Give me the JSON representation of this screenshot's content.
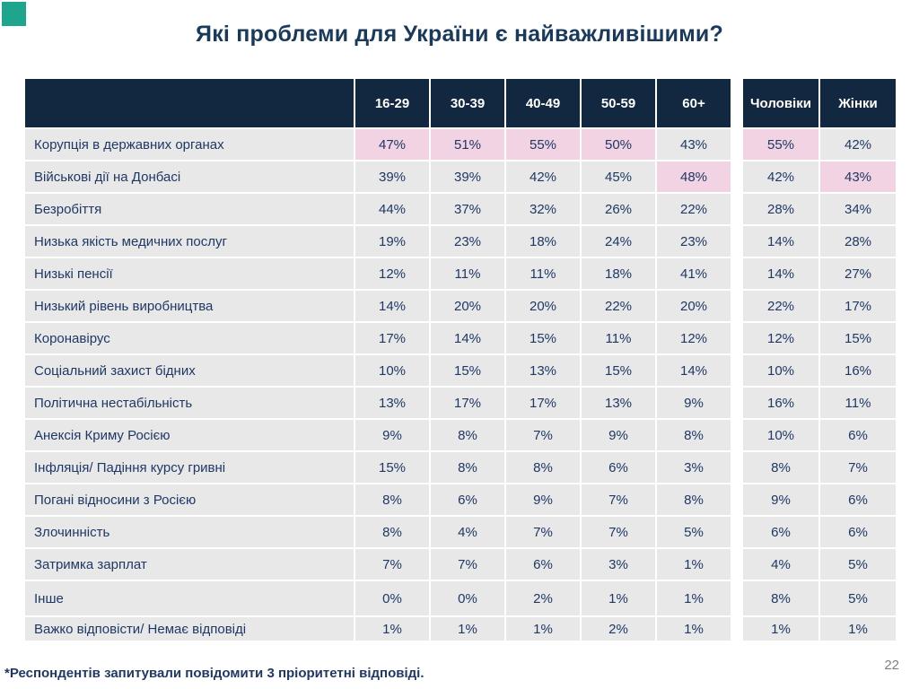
{
  "slide": {
    "title": "Які проблеми для України є найважливішими?",
    "footnote": "*Респондентів запитували повідомити 3 пріоритетні відповіді.",
    "page_number": "22"
  },
  "colors": {
    "accent": "#1FA58D",
    "title_text": "#1A3A5C",
    "header_bg": "#122740",
    "cell_text": "#1F3864",
    "row_bg": "#E8E8E8",
    "highlight_pink": "#F2D3E3"
  },
  "table": {
    "corner_label": "",
    "col_headers_age": [
      "16-29",
      "30-39",
      "40-49",
      "50-59",
      "60+"
    ],
    "col_headers_gender": [
      "Чоловіки",
      "Жінки"
    ],
    "rows": [
      {
        "label": "Корупція в державних органах",
        "age": [
          "47%",
          "51%",
          "55%",
          "50%",
          "43%"
        ],
        "gender": [
          "55%",
          "42%"
        ],
        "age_hl": [
          true,
          true,
          true,
          true,
          false
        ],
        "gender_hl": [
          true,
          false
        ]
      },
      {
        "label": "Військові дії на Донбасі",
        "age": [
          "39%",
          "39%",
          "42%",
          "45%",
          "48%"
        ],
        "gender": [
          "42%",
          "43%"
        ],
        "age_hl": [
          false,
          false,
          false,
          false,
          true
        ],
        "gender_hl": [
          false,
          true
        ]
      },
      {
        "label": "Безробіття",
        "age": [
          "44%",
          "37%",
          "32%",
          "26%",
          "22%"
        ],
        "gender": [
          "28%",
          "34%"
        ],
        "age_hl": [
          false,
          false,
          false,
          false,
          false
        ],
        "gender_hl": [
          false,
          false
        ]
      },
      {
        "label": "Низька якість медичних послуг",
        "age": [
          "19%",
          "23%",
          "18%",
          "24%",
          "23%"
        ],
        "gender": [
          "14%",
          "28%"
        ],
        "age_hl": [
          false,
          false,
          false,
          false,
          false
        ],
        "gender_hl": [
          false,
          false
        ]
      },
      {
        "label": "Низькі пенсії",
        "age": [
          "12%",
          "11%",
          "11%",
          "18%",
          "41%"
        ],
        "gender": [
          "14%",
          "27%"
        ],
        "age_hl": [
          false,
          false,
          false,
          false,
          false
        ],
        "gender_hl": [
          false,
          false
        ]
      },
      {
        "label": "Низький рівень виробництва",
        "age": [
          "14%",
          "20%",
          "20%",
          "22%",
          "20%"
        ],
        "gender": [
          "22%",
          "17%"
        ],
        "age_hl": [
          false,
          false,
          false,
          false,
          false
        ],
        "gender_hl": [
          false,
          false
        ]
      },
      {
        "label": "Коронавірус",
        "age": [
          "17%",
          "14%",
          "15%",
          "11%",
          "12%"
        ],
        "gender": [
          "12%",
          "15%"
        ],
        "age_hl": [
          false,
          false,
          false,
          false,
          false
        ],
        "gender_hl": [
          false,
          false
        ]
      },
      {
        "label": "Соціальний захист бідних",
        "age": [
          "10%",
          "15%",
          "13%",
          "15%",
          "14%"
        ],
        "gender": [
          "10%",
          "16%"
        ],
        "age_hl": [
          false,
          false,
          false,
          false,
          false
        ],
        "gender_hl": [
          false,
          false
        ]
      },
      {
        "label": "Політична нестабільність",
        "age": [
          "13%",
          "17%",
          "17%",
          "13%",
          "9%"
        ],
        "gender": [
          "16%",
          "11%"
        ],
        "age_hl": [
          false,
          false,
          false,
          false,
          false
        ],
        "gender_hl": [
          false,
          false
        ]
      },
      {
        "label": "Анексія Криму Росією",
        "age": [
          "9%",
          "8%",
          "7%",
          "9%",
          "8%"
        ],
        "gender": [
          "10%",
          "6%"
        ],
        "age_hl": [
          false,
          false,
          false,
          false,
          false
        ],
        "gender_hl": [
          false,
          false
        ]
      },
      {
        "label": "Інфляція/ Падіння курсу гривні",
        "age": [
          "15%",
          "8%",
          "8%",
          "6%",
          "3%"
        ],
        "gender": [
          "8%",
          "7%"
        ],
        "age_hl": [
          false,
          false,
          false,
          false,
          false
        ],
        "gender_hl": [
          false,
          false
        ]
      },
      {
        "label": "Погані відносини з Росією",
        "age": [
          "8%",
          "6%",
          "9%",
          "7%",
          "8%"
        ],
        "gender": [
          "9%",
          "6%"
        ],
        "age_hl": [
          false,
          false,
          false,
          false,
          false
        ],
        "gender_hl": [
          false,
          false
        ]
      },
      {
        "label": "Злочинність",
        "age": [
          "8%",
          "4%",
          "7%",
          "7%",
          "5%"
        ],
        "gender": [
          "6%",
          "6%"
        ],
        "age_hl": [
          false,
          false,
          false,
          false,
          false
        ],
        "gender_hl": [
          false,
          false
        ]
      },
      {
        "label": "Затримка зарплат",
        "age": [
          "7%",
          "7%",
          "6%",
          "3%",
          "1%"
        ],
        "gender": [
          "4%",
          "5%"
        ],
        "age_hl": [
          false,
          false,
          false,
          false,
          false
        ],
        "gender_hl": [
          false,
          false
        ]
      },
      {
        "label": "Інше",
        "age": [
          "0%",
          "0%",
          "2%",
          "1%",
          "1%"
        ],
        "gender": [
          "8%",
          "5%"
        ],
        "age_hl": [
          false,
          false,
          false,
          false,
          false
        ],
        "gender_hl": [
          false,
          false
        ]
      },
      {
        "label": "Важко відповісти/ Немає відповіді",
        "age": [
          "1%",
          "1%",
          "1%",
          "2%",
          "1%"
        ],
        "gender": [
          "1%",
          "1%"
        ],
        "age_hl": [
          false,
          false,
          false,
          false,
          false
        ],
        "gender_hl": [
          false,
          false
        ]
      }
    ]
  }
}
